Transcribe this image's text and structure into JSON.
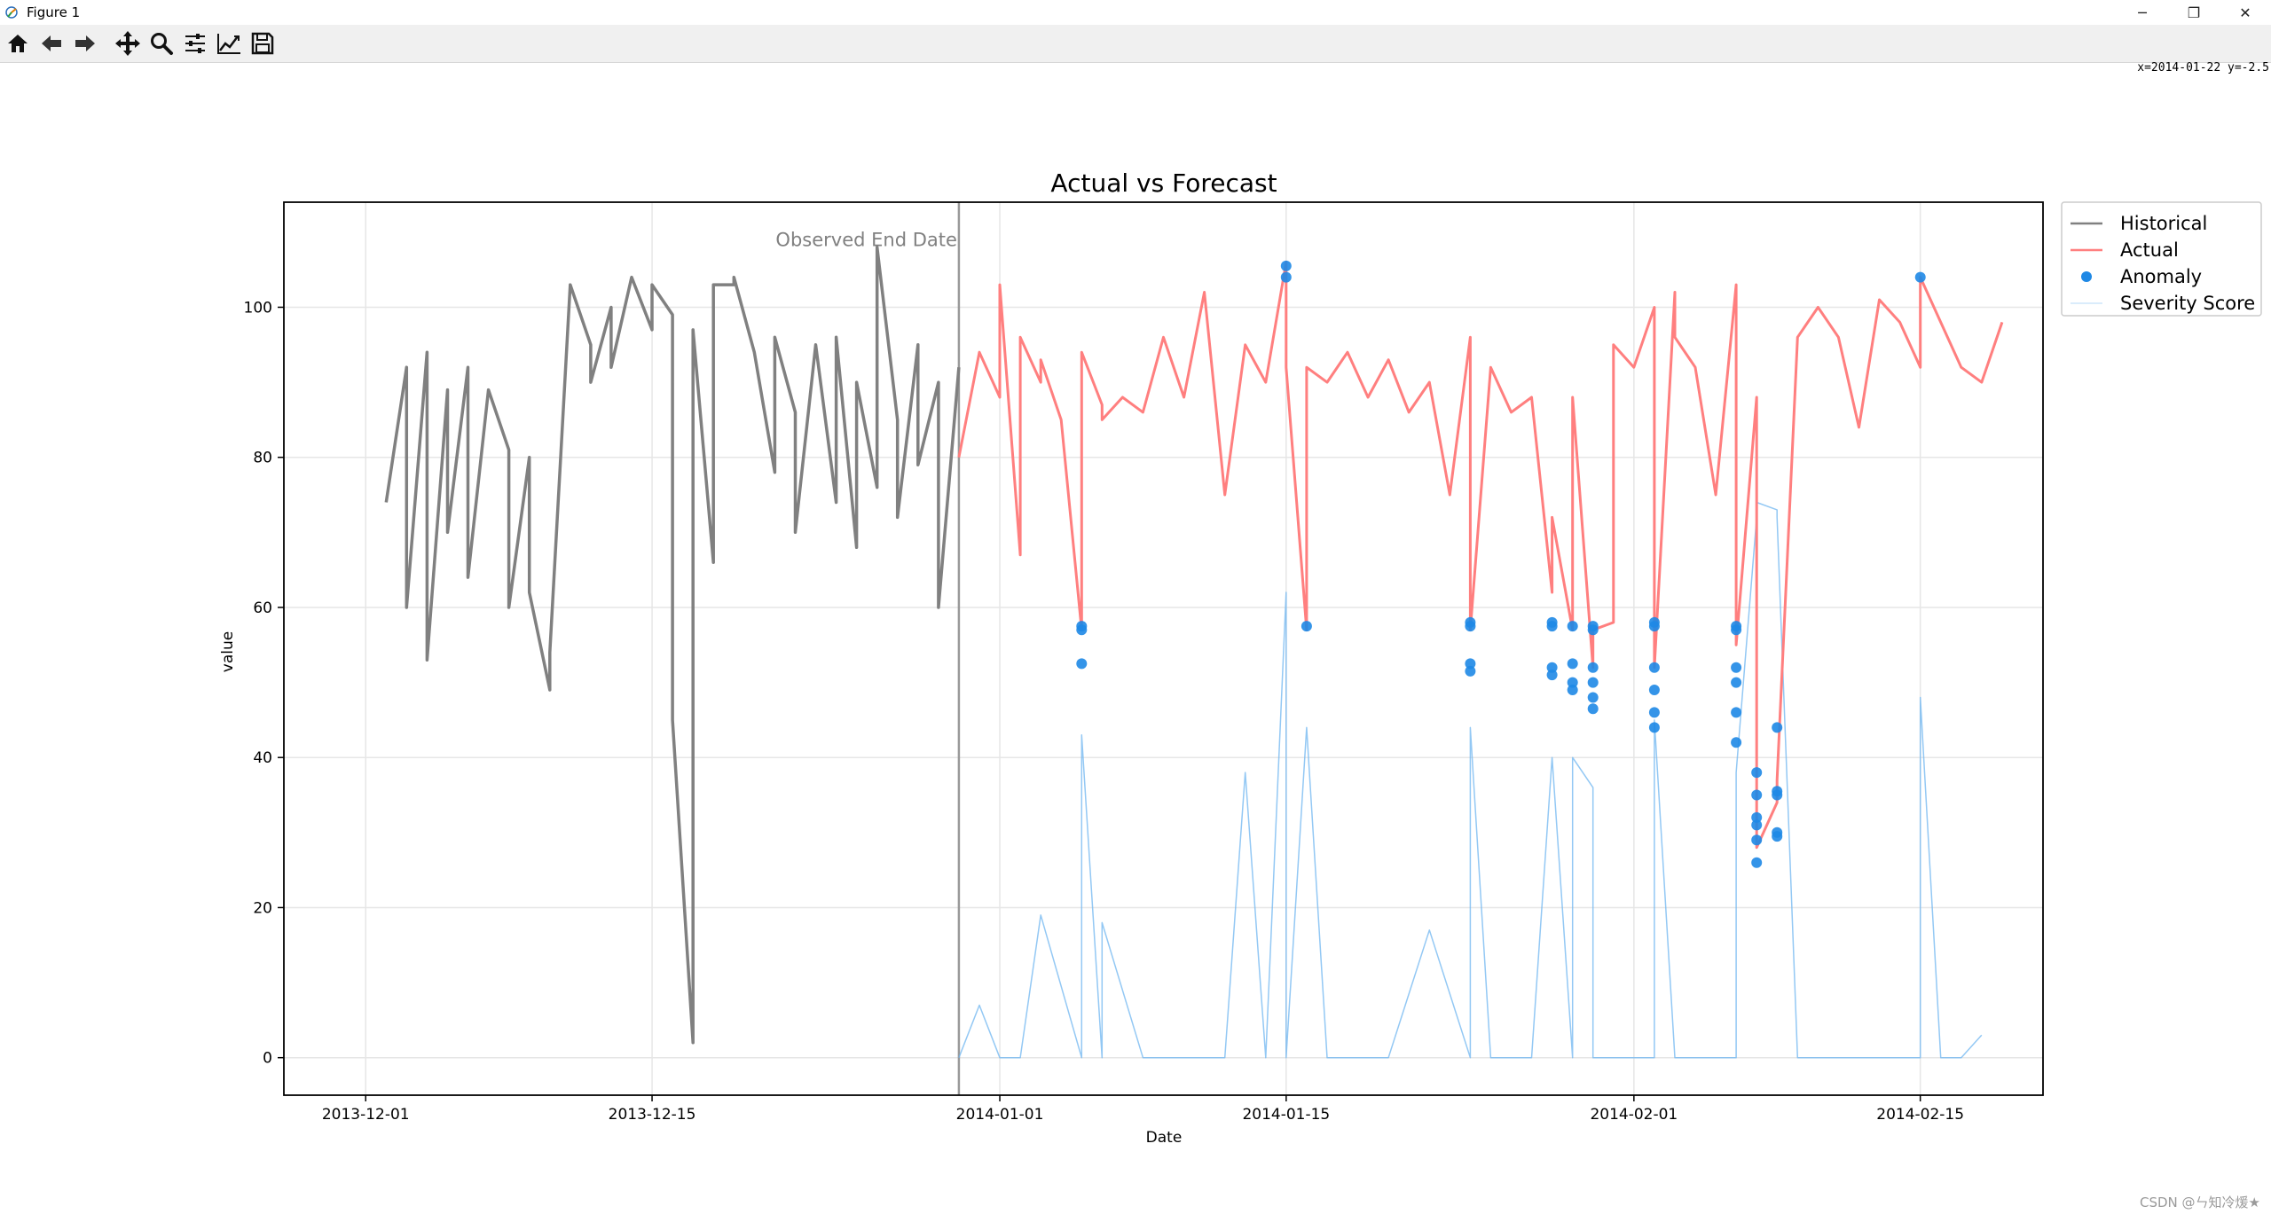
{
  "window": {
    "title": "Figure 1",
    "minimize": "─",
    "restore": "❐",
    "close": "✕"
  },
  "toolbar": {
    "buttons": [
      {
        "name": "home-icon"
      },
      {
        "name": "back-icon"
      },
      {
        "name": "forward-icon"
      },
      {
        "name": "pan-icon"
      },
      {
        "name": "zoom-icon"
      },
      {
        "name": "configure-subplots-icon"
      },
      {
        "name": "edit-axis-icon"
      },
      {
        "name": "save-icon"
      }
    ],
    "coords": "x=2014-01-22 y=-2.5"
  },
  "watermark": "CSDN @ㄣ知冷煖★",
  "colors": {
    "historical": "#808080",
    "actual": "#ff7f7f",
    "anomaly": "#1e88e5",
    "severity": "#6fb6f0",
    "grid": "#e6e6e6"
  },
  "chart_data": {
    "type": "line",
    "title": "Actual vs Forecast",
    "xlabel": "Date",
    "ylabel": "value",
    "xlim": [
      "2013-11-27",
      "2014-02-21"
    ],
    "ylim": [
      -5,
      114
    ],
    "xticks": [
      "2013-12-01",
      "2013-12-15",
      "2014-01-01",
      "2014-01-15",
      "2014-02-01",
      "2014-02-15"
    ],
    "yticks": [
      0,
      20,
      40,
      60,
      80,
      100
    ],
    "grid": true,
    "legend": {
      "location": "outside-upper-right",
      "entries": [
        "Historical",
        "Actual",
        "Anomaly",
        "Severity Score"
      ]
    },
    "annotation": {
      "text": "Observed End Date",
      "x": "2013-12-30",
      "y": 109
    },
    "vline": {
      "x": "2013-12-30",
      "color": "#999999"
    },
    "series": [
      {
        "name": "Historical",
        "color": "#808080",
        "x": [
          "2013-12-02",
          "2013-12-03",
          "2013-12-03",
          "2013-12-04",
          "2013-12-04",
          "2013-12-05",
          "2013-12-05",
          "2013-12-06",
          "2013-12-06",
          "2013-12-07",
          "2013-12-08",
          "2013-12-08",
          "2013-12-09",
          "2013-12-09",
          "2013-12-10",
          "2013-12-10",
          "2013-12-11",
          "2013-12-12",
          "2013-12-12",
          "2013-12-13",
          "2013-12-13",
          "2013-12-14",
          "2013-12-15",
          "2013-12-15",
          "2013-12-16",
          "2013-12-16",
          "2013-12-17",
          "2013-12-17",
          "2013-12-18",
          "2013-12-18",
          "2013-12-19",
          "2013-12-19",
          "2013-12-20",
          "2013-12-21",
          "2013-12-21",
          "2013-12-22",
          "2013-12-22",
          "2013-12-23",
          "2013-12-24",
          "2013-12-24",
          "2013-12-25",
          "2013-12-25",
          "2013-12-26",
          "2013-12-26",
          "2013-12-27",
          "2013-12-27",
          "2013-12-28",
          "2013-12-28",
          "2013-12-29",
          "2013-12-29",
          "2013-12-30"
        ],
        "y": [
          74,
          92,
          60,
          94,
          53,
          89,
          70,
          92,
          64,
          89,
          81,
          60,
          80,
          62,
          49,
          54,
          103,
          95,
          90,
          100,
          92,
          104,
          97,
          103,
          99,
          45,
          2,
          97,
          66,
          103,
          103,
          104,
          94,
          78,
          96,
          86,
          70,
          95,
          74,
          96,
          68,
          90,
          76,
          108,
          85,
          72,
          95,
          79,
          90,
          60,
          92
        ]
      },
      {
        "name": "Actual",
        "color": "#ff7f7f",
        "x": [
          "2013-12-30",
          "2013-12-31",
          "2014-01-01",
          "2014-01-01",
          "2014-01-02",
          "2014-01-02",
          "2014-01-03",
          "2014-01-03",
          "2014-01-04",
          "2014-01-05",
          "2014-01-05",
          "2014-01-06",
          "2014-01-06",
          "2014-01-07",
          "2014-01-08",
          "2014-01-09",
          "2014-01-10",
          "2014-01-11",
          "2014-01-12",
          "2014-01-13",
          "2014-01-14",
          "2014-01-15",
          "2014-01-15",
          "2014-01-16",
          "2014-01-16",
          "2014-01-17",
          "2014-01-18",
          "2014-01-19",
          "2014-01-20",
          "2014-01-21",
          "2014-01-22",
          "2014-01-23",
          "2014-01-24",
          "2014-01-24",
          "2014-01-25",
          "2014-01-26",
          "2014-01-27",
          "2014-01-28",
          "2014-01-28",
          "2014-01-29",
          "2014-01-29",
          "2014-01-30",
          "2014-01-30",
          "2014-01-31",
          "2014-01-31",
          "2014-02-01",
          "2014-02-02",
          "2014-02-02",
          "2014-02-03",
          "2014-02-03",
          "2014-02-04",
          "2014-02-05",
          "2014-02-06",
          "2014-02-06",
          "2014-02-07",
          "2014-02-07",
          "2014-02-08",
          "2014-02-08",
          "2014-02-09",
          "2014-02-10",
          "2014-02-11",
          "2014-02-12",
          "2014-02-13",
          "2014-02-14",
          "2014-02-15",
          "2014-02-15",
          "2014-02-16",
          "2014-02-17",
          "2014-02-18",
          "2014-02-19"
        ],
        "y": [
          80,
          94,
          88,
          103,
          67,
          96,
          90,
          93,
          85,
          57,
          94,
          87,
          85,
          88,
          86,
          96,
          88,
          102,
          75,
          95,
          90,
          106,
          92,
          57,
          92,
          90,
          94,
          88,
          93,
          86,
          90,
          75,
          96,
          57,
          92,
          86,
          88,
          62,
          72,
          57,
          88,
          52,
          57,
          58,
          95,
          92,
          100,
          52,
          102,
          96,
          92,
          75,
          103,
          55,
          88,
          28,
          34,
          37,
          96,
          100,
          96,
          84,
          101,
          98,
          92,
          104,
          98,
          92,
          90,
          98
        ]
      },
      {
        "name": "Severity Score",
        "color": "#6fb6f0",
        "x": [
          "2013-12-30",
          "2013-12-31",
          "2014-01-01",
          "2014-01-02",
          "2014-01-03",
          "2014-01-05",
          "2014-01-05",
          "2014-01-06",
          "2014-01-06",
          "2014-01-08",
          "2014-01-10",
          "2014-01-12",
          "2014-01-13",
          "2014-01-14",
          "2014-01-15",
          "2014-01-15",
          "2014-01-16",
          "2014-01-17",
          "2014-01-18",
          "2014-01-20",
          "2014-01-22",
          "2014-01-24",
          "2014-01-24",
          "2014-01-25",
          "2014-01-27",
          "2014-01-28",
          "2014-01-29",
          "2014-01-29",
          "2014-01-30",
          "2014-01-30",
          "2014-01-31",
          "2014-02-01",
          "2014-02-02",
          "2014-02-02",
          "2014-02-03",
          "2014-02-04",
          "2014-02-05",
          "2014-02-06",
          "2014-02-06",
          "2014-02-07",
          "2014-02-07",
          "2014-02-08",
          "2014-02-08",
          "2014-02-09",
          "2014-02-10",
          "2014-02-12",
          "2014-02-13",
          "2014-02-14",
          "2014-02-15",
          "2014-02-15",
          "2014-02-16",
          "2014-02-17",
          "2014-02-18"
        ],
        "y": [
          0,
          7,
          0,
          0,
          19,
          0,
          43,
          0,
          18,
          0,
          0,
          0,
          38,
          0,
          62,
          0,
          44,
          0,
          0,
          0,
          17,
          0,
          44,
          0,
          0,
          40,
          0,
          40,
          36,
          0,
          0,
          0,
          0,
          45,
          0,
          0,
          0,
          0,
          38,
          72,
          74,
          73,
          72,
          0,
          0,
          0,
          0,
          0,
          0,
          48,
          0,
          0,
          3
        ]
      }
    ],
    "anomalies": {
      "name": "Anomaly",
      "color": "#1e88e5",
      "x": [
        "2014-01-05",
        "2014-01-05",
        "2014-01-05",
        "2014-01-15",
        "2014-01-15",
        "2014-01-16",
        "2014-01-24",
        "2014-01-24",
        "2014-01-24",
        "2014-01-24",
        "2014-01-28",
        "2014-01-28",
        "2014-01-28",
        "2014-01-28",
        "2014-01-29",
        "2014-01-29",
        "2014-01-29",
        "2014-01-29",
        "2014-01-30",
        "2014-01-30",
        "2014-01-30",
        "2014-01-30",
        "2014-01-30",
        "2014-01-30",
        "2014-02-02",
        "2014-02-02",
        "2014-02-02",
        "2014-02-02",
        "2014-02-02",
        "2014-02-02",
        "2014-02-06",
        "2014-02-06",
        "2014-02-06",
        "2014-02-06",
        "2014-02-06",
        "2014-02-06",
        "2014-02-07",
        "2014-02-07",
        "2014-02-07",
        "2014-02-07",
        "2014-02-07",
        "2014-02-07",
        "2014-02-08",
        "2014-02-08",
        "2014-02-08",
        "2014-02-08",
        "2014-02-08",
        "2014-02-15"
      ],
      "y": [
        57.5,
        57,
        52.5,
        105.5,
        104,
        57.5,
        58,
        57.5,
        52.5,
        51.5,
        58,
        57.5,
        52,
        51,
        57.5,
        52.5,
        50,
        49,
        57.5,
        57,
        52,
        50,
        48,
        46.5,
        58,
        57.5,
        52,
        49,
        46,
        44,
        57.5,
        57,
        52,
        50,
        46,
        42,
        38,
        35,
        32,
        29,
        26,
        31,
        35.5,
        35,
        30,
        29.5,
        44,
        104
      ]
    }
  }
}
